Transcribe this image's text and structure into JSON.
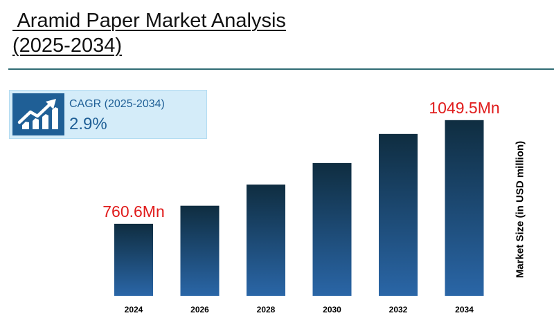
{
  "header": {
    "title_line1": " Aramid Paper Market Analysis",
    "title_line2": "(2025-2034)"
  },
  "cagr": {
    "label": "CAGR (2025-2034)",
    "value": "2.9%",
    "icon": "growth-chart-icon"
  },
  "colors": {
    "bar_top": "#0f2d40",
    "bar_bottom": "#2a66a7",
    "highlight_label": "#e01b1b",
    "accent": "#1f5f96"
  },
  "chart_data": {
    "type": "bar",
    "categories": [
      "2024",
      "2026",
      "2028",
      "2030",
      "2032",
      "2034"
    ],
    "values": [
      760.6,
      811,
      870,
      930,
      1011,
      1049.5
    ],
    "data_labels": [
      {
        "index": 0,
        "text": "760.6Mn"
      },
      {
        "index": 5,
        "text": "1049.5Mn"
      }
    ],
    "ylabel": "Market Size (in USD million)",
    "ylim": [
      560,
      1080
    ],
    "grid": false,
    "legend": "none"
  }
}
